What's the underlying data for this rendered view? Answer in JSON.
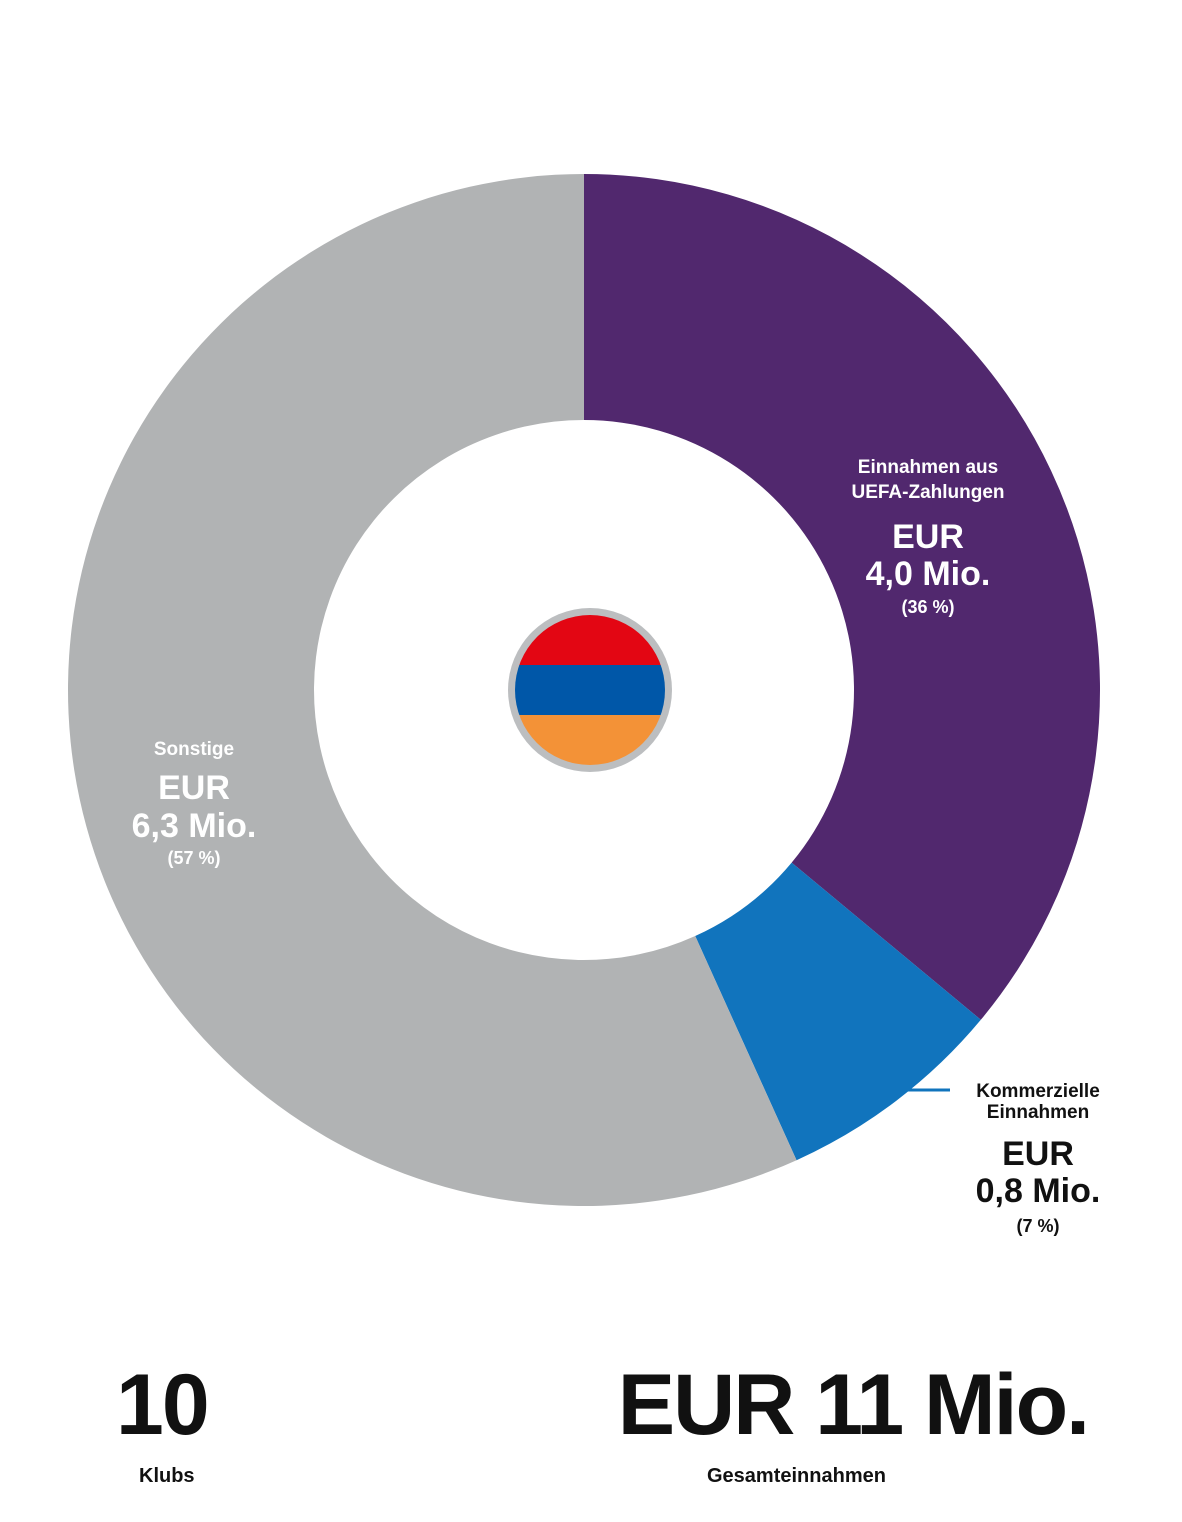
{
  "chart_data": {
    "type": "pie",
    "variant": "donut",
    "unit": "EUR Mio.",
    "slices": [
      {
        "label": "Einnahmen aus UEFA-Zahlungen",
        "label_lines": [
          "Einnahmen aus",
          "UEFA-Zahlungen"
        ],
        "currency": "EUR",
        "amount": "4,0 Mio.",
        "value": 4.0,
        "percent": 36,
        "percent_text": "(36 %)",
        "color": "#51286e",
        "text_color": "#ffffff"
      },
      {
        "label": "Kommerzielle Einnahmen",
        "label_lines": [
          "Kommerzielle",
          "Einnahmen"
        ],
        "currency": "EUR",
        "amount": "0,8 Mio.",
        "value": 0.8,
        "percent": 7,
        "percent_text": "(7 %)",
        "color": "#1174bd",
        "text_color": "#111111"
      },
      {
        "label": "Sonstige",
        "label_lines": [
          "Sonstige"
        ],
        "currency": "EUR",
        "amount": "6,3 Mio.",
        "value": 6.3,
        "percent": 57,
        "percent_text": "(57 %)",
        "color": "#b1b3b4",
        "text_color": "#ffffff"
      }
    ],
    "flag": {
      "stripes": [
        "#e30613",
        "#0057a8",
        "#f39237"
      ],
      "ring_color": "#bcbec0"
    }
  },
  "summary": {
    "clubs_count": "10",
    "clubs_label": "Klubs",
    "total_value": "EUR 11 Mio.",
    "total_label": "Gesamteinnahmen"
  }
}
